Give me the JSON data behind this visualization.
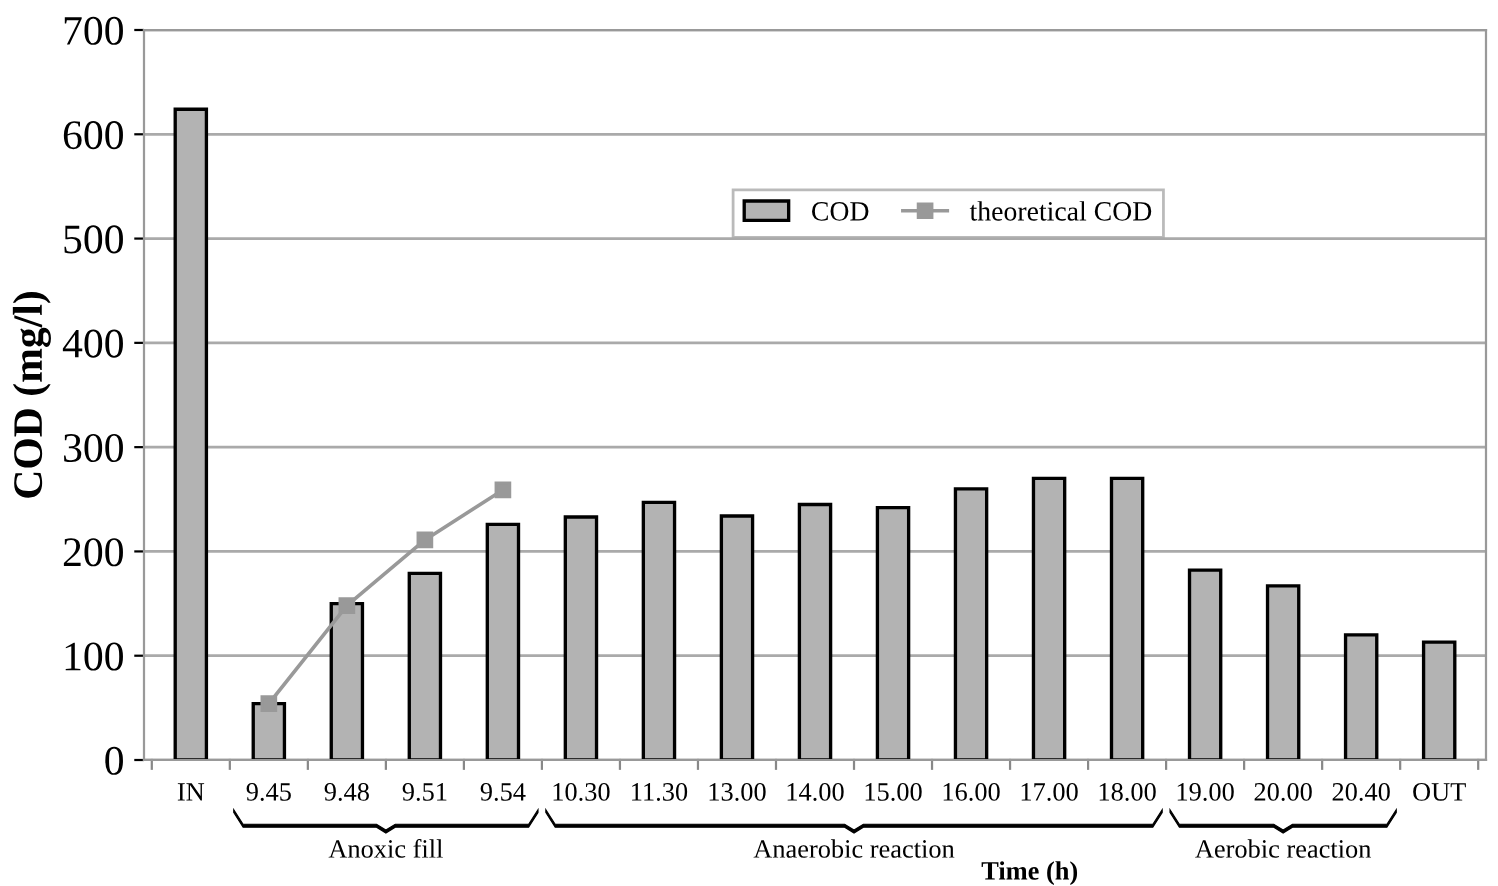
{
  "chart_data": {
    "type": "bar",
    "ylabel": "COD (mg/l)",
    "xlabel": "Time (h)",
    "categories": [
      "IN",
      "9.45",
      "9.48",
      "9.51",
      "9.54",
      "10.30",
      "11.30",
      "13.00",
      "14.00",
      "15.00",
      "16.00",
      "17.00",
      "18.00",
      "19.00",
      "20.00",
      "20.40",
      "OUT"
    ],
    "series": [
      {
        "name": "COD",
        "type": "bar",
        "color": "#b3b3b3",
        "values": [
          624,
          54,
          150,
          179,
          226,
          233,
          247,
          234,
          245,
          242,
          260,
          270,
          270,
          182,
          167,
          120,
          113
        ]
      },
      {
        "name": "theoretical COD",
        "type": "line",
        "color": "#999999",
        "marker": "square",
        "values": [
          null,
          54,
          148,
          211,
          259,
          null,
          null,
          null,
          null,
          null,
          null,
          null,
          null,
          null,
          null,
          null,
          null
        ]
      }
    ],
    "ylim": [
      0,
      700
    ],
    "yticks": [
      0,
      100,
      200,
      300,
      400,
      500,
      600,
      700
    ],
    "grid": "y",
    "legend": "top right",
    "annotations": [
      "Anoxic fill",
      "Anaerobic reaction",
      "Aerobic reaction"
    ]
  }
}
